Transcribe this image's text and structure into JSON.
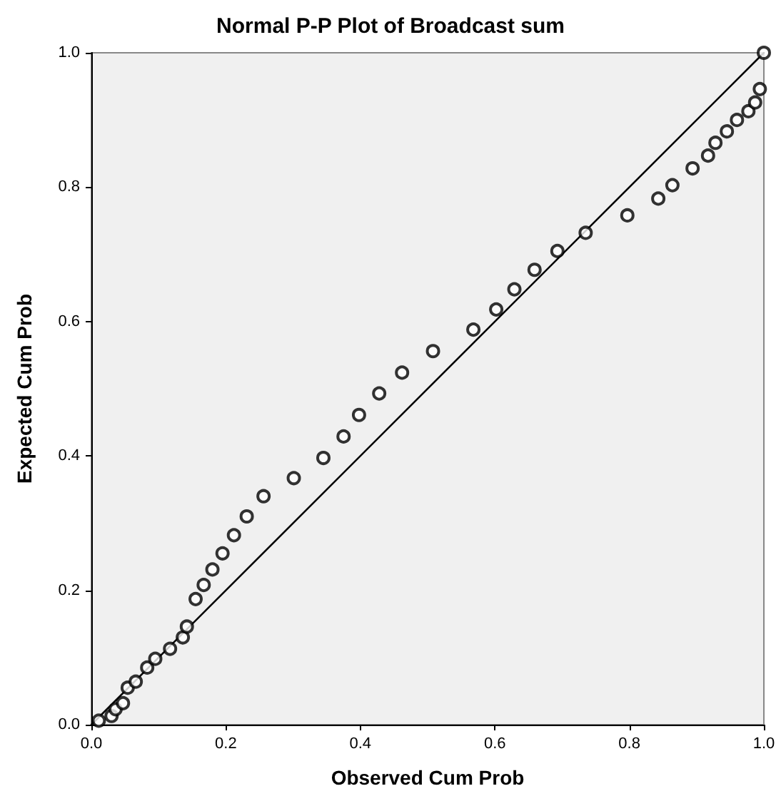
{
  "chart_data": {
    "type": "scatter",
    "title": "Normal P-P Plot of Broadcast sum",
    "xlabel": "Observed Cum Prob",
    "ylabel": "Expected Cum Prob",
    "xlim": [
      0,
      1
    ],
    "ylim": [
      0,
      1
    ],
    "xticks": [
      {
        "value": 0,
        "label": "0.0"
      },
      {
        "value": 0.2,
        "label": "0.2"
      },
      {
        "value": 0.4,
        "label": "0.4"
      },
      {
        "value": 0.6,
        "label": "0.6"
      },
      {
        "value": 0.8,
        "label": "0.8"
      },
      {
        "value": 1,
        "label": "1.0"
      }
    ],
    "yticks": [
      {
        "value": 0,
        "label": "0.0"
      },
      {
        "value": 0.2,
        "label": "0.2"
      },
      {
        "value": 0.4,
        "label": "0.4"
      },
      {
        "value": 0.6,
        "label": "0.6"
      },
      {
        "value": 0.8,
        "label": "0.8"
      },
      {
        "value": 1,
        "label": "1.0"
      }
    ],
    "grid": false,
    "marker": "circle",
    "series": [
      {
        "color": "#000000",
        "x": [
          0.011,
          0.03,
          0.036,
          0.047,
          0.054,
          0.066,
          0.083,
          0.095,
          0.117,
          0.136,
          0.142,
          0.155,
          0.167,
          0.18,
          0.195,
          0.212,
          0.231,
          0.256,
          0.301,
          0.345,
          0.375,
          0.398,
          0.428,
          0.462,
          0.508,
          0.568,
          0.602,
          0.629,
          0.659,
          0.693,
          0.735,
          0.797,
          0.843,
          0.864,
          0.894,
          0.917,
          0.928,
          0.945,
          0.96,
          0.977,
          0.987,
          0.994,
          1.0
        ],
        "values": [
          0.006,
          0.013,
          0.023,
          0.032,
          0.055,
          0.064,
          0.085,
          0.098,
          0.113,
          0.13,
          0.146,
          0.187,
          0.208,
          0.231,
          0.255,
          0.282,
          0.31,
          0.34,
          0.367,
          0.397,
          0.429,
          0.461,
          0.493,
          0.524,
          0.556,
          0.588,
          0.618,
          0.648,
          0.677,
          0.705,
          0.732,
          0.758,
          0.783,
          0.803,
          0.828,
          0.847,
          0.866,
          0.883,
          0.9,
          0.913,
          0.926,
          0.946,
          1.0
        ]
      },
      {
        "type": "line",
        "color": "#000000",
        "marker": "none",
        "line_style": "solid",
        "x": [
          0,
          1
        ],
        "values": [
          0,
          1
        ]
      }
    ]
  }
}
